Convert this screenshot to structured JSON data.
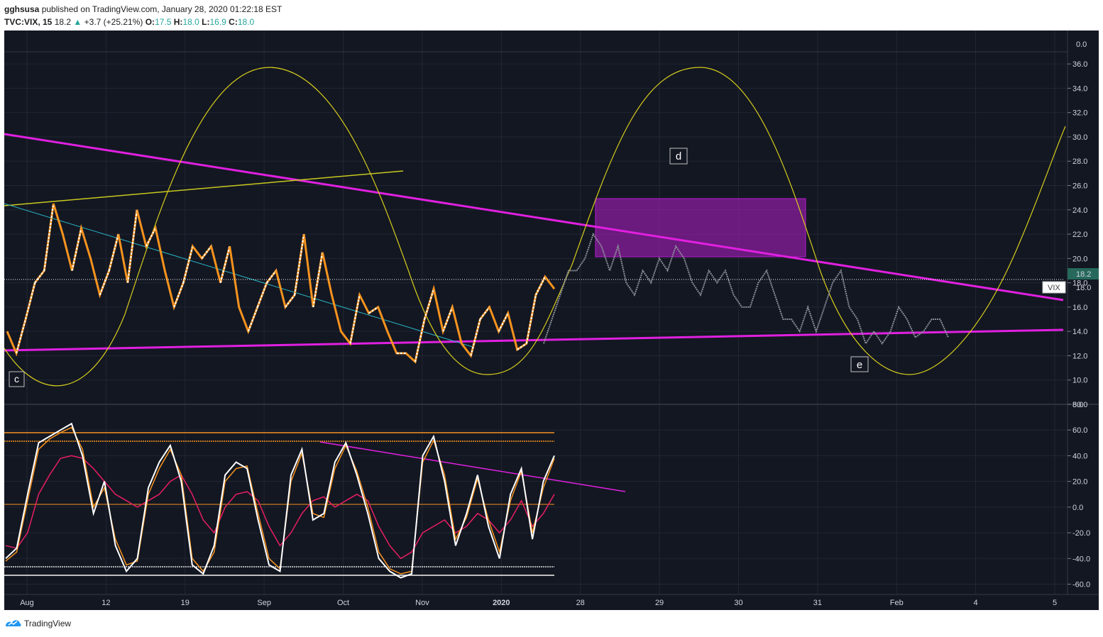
{
  "header": {
    "author": "gghsusa",
    "published": "published on TradingView.com, January 28, 2020 01:22:18 EST",
    "symbol": "TVC:VIX, 15",
    "last": "18.2",
    "change": "+3.7 (+25.21%)",
    "o_label": "O:",
    "o_value": "17.5",
    "h_label": "H:",
    "h_value": "18.0",
    "l_label": "L:",
    "l_value": "16.9",
    "c_label": "C:",
    "c_value": "18.0"
  },
  "footer": {
    "brand": "TradingView"
  },
  "chart_data": {
    "type": "line",
    "title": "",
    "price_axis": {
      "range": [
        8.0,
        37.0
      ],
      "ticks": [
        8.0,
        10.0,
        12.0,
        14.0,
        16.0,
        18.0,
        20.0,
        22.0,
        24.0,
        26.0,
        28.0,
        30.0,
        32.0,
        34.0,
        36.0
      ]
    },
    "osc_axis_top_label": "0.0",
    "osc_axis": {
      "range": [
        -68,
        80
      ],
      "ticks": [
        80.0,
        60.0,
        40.0,
        20.0,
        0.0,
        -20.0,
        -40.0,
        -60.0
      ]
    },
    "x_ticks": [
      "Aug",
      "12",
      "19",
      "Sep",
      "Oct",
      "Nov",
      "2020",
      "28",
      "29",
      "30",
      "31",
      "Feb",
      "4",
      "5"
    ],
    "x_ticks_bold": [
      "2020"
    ],
    "series": [
      {
        "name": "VIX",
        "color": "#ffffff",
        "down_color": "#f7931e",
        "values": [
          14,
          12.2,
          15,
          18,
          19,
          24.5,
          22,
          19,
          22.5,
          20,
          17,
          19,
          22,
          18,
          24,
          21,
          22.5,
          19,
          16,
          18,
          21,
          20,
          21,
          18,
          21,
          16,
          14,
          16,
          18,
          19,
          16,
          17,
          22,
          16,
          20.5,
          17,
          14,
          13,
          17,
          15.5,
          16,
          14,
          12.2,
          12.2,
          11.5,
          15,
          17.5,
          14,
          16,
          13,
          12,
          15,
          16,
          14,
          15.5,
          12.5,
          13,
          17,
          18.5,
          17.5
        ]
      },
      {
        "name": "projection",
        "color": "#8c8f99",
        "values": [
          13,
          15,
          17,
          19,
          19,
          20,
          22,
          21,
          19,
          21,
          18,
          17,
          19,
          18,
          20,
          19,
          21,
          20,
          18,
          17,
          19,
          18,
          19,
          17,
          16,
          16,
          18,
          19,
          17,
          15,
          15,
          14,
          16,
          14,
          16,
          18,
          19,
          16,
          15,
          13,
          14,
          13,
          14,
          16,
          15,
          13.5,
          14,
          15,
          15,
          13.5
        ]
      }
    ],
    "last_value_label": "18.2",
    "symbol_label": "VIX",
    "symbol_value": "18.0",
    "annotations": [
      "c",
      "d",
      "e"
    ],
    "oscillator_series": [
      {
        "name": "fast",
        "color": "#ffffff",
        "values": [
          -40,
          -32,
          10,
          50,
          55,
          60,
          65,
          40,
          -5,
          20,
          -30,
          -50,
          -40,
          15,
          35,
          48,
          20,
          -45,
          -52,
          -30,
          25,
          35,
          30,
          -10,
          -45,
          -50,
          25,
          45,
          -10,
          -5,
          35,
          50,
          25,
          -5,
          -40,
          -50,
          -55,
          -52,
          40,
          55,
          20,
          -30,
          -5,
          25,
          -15,
          -40,
          10,
          30,
          -25,
          20,
          40
        ]
      },
      {
        "name": "signal",
        "color": "#f7931e",
        "values": [
          -42,
          -35,
          5,
          45,
          53,
          58,
          62,
          45,
          0,
          15,
          -25,
          -45,
          -42,
          10,
          30,
          45,
          25,
          -40,
          -50,
          -35,
          20,
          30,
          32,
          -5,
          -40,
          -48,
          20,
          42,
          -5,
          -8,
          30,
          48,
          28,
          0,
          -35,
          -48,
          -52,
          -50,
          35,
          52,
          25,
          -25,
          -8,
          22,
          -10,
          -35,
          5,
          28,
          -20,
          15,
          38
        ]
      },
      {
        "name": "slow",
        "color": "#e91e63",
        "values": [
          -30,
          -32,
          -20,
          10,
          25,
          38,
          40,
          38,
          30,
          20,
          10,
          5,
          0,
          5,
          10,
          20,
          25,
          10,
          -10,
          -20,
          0,
          10,
          12,
          5,
          -15,
          -30,
          -20,
          -5,
          5,
          8,
          0,
          5,
          10,
          5,
          -15,
          -30,
          -40,
          -35,
          -20,
          -15,
          -10,
          -20,
          -15,
          -5,
          -10,
          -20,
          -10,
          5,
          -15,
          -5,
          10
        ]
      }
    ],
    "grid": true
  }
}
